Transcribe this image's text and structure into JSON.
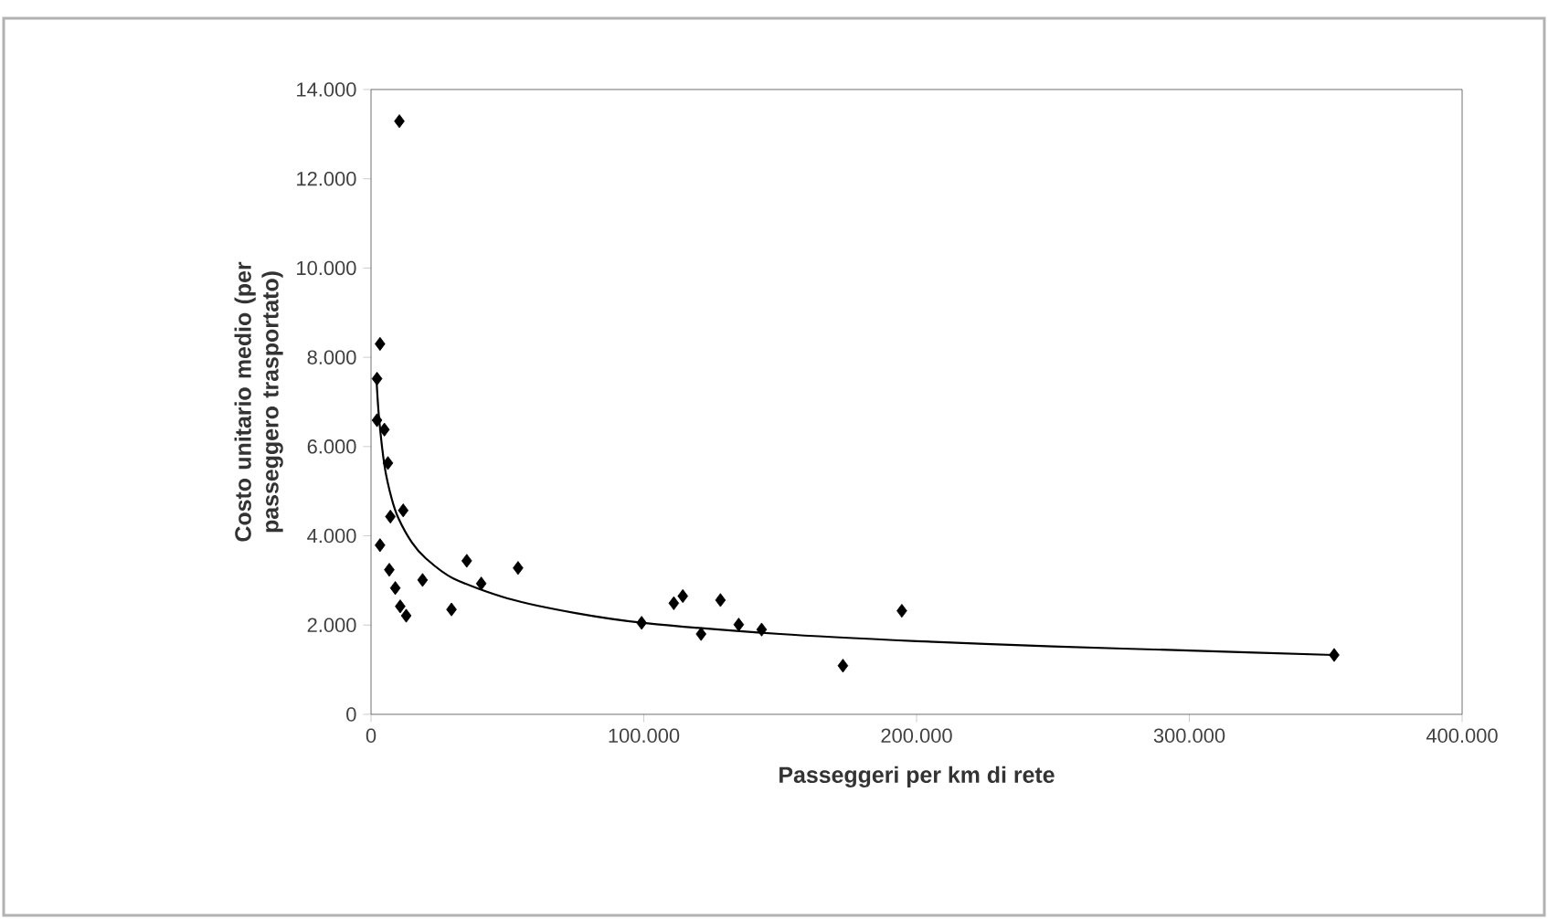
{
  "chart_data": {
    "type": "scatter",
    "xlabel": "Passeggeri per km di rete",
    "ylabel": "Costo unitario medio (per passeggero trasportato)",
    "xlim": [
      0,
      400000
    ],
    "ylim": [
      0,
      14000
    ],
    "xticks": [
      0,
      {
        "value": 100000,
        "label": "100.000"
      },
      {
        "value": 200000,
        "label": "200.000"
      },
      {
        "value": 300000,
        "label": "300.000"
      },
      {
        "value": 400000,
        "label": "400.000"
      }
    ],
    "yticks": [
      0,
      {
        "value": 2000,
        "label": "2.000"
      },
      {
        "value": 4000,
        "label": "4.000"
      },
      {
        "value": 6000,
        "label": "6.000"
      },
      {
        "value": 8000,
        "label": "8.000"
      },
      {
        "value": 10000,
        "label": "10.000"
      },
      {
        "value": 12000,
        "label": "12.000"
      },
      {
        "value": 14000,
        "label": "14.000"
      }
    ],
    "grid": false,
    "marker": "diamond",
    "series": [
      {
        "color": "#000000",
        "x": [
          10400,
          3300,
          2200,
          2200,
          4900,
          6200,
          7100,
          11800,
          3300,
          6700,
          8900,
          10700,
          12900,
          18900,
          29500,
          35100,
          40400,
          53900,
          99200,
          111000,
          114300,
          121000,
          128100,
          134800,
          143200,
          173000,
          194600,
          353100
        ],
        "values": [
          13290,
          8300,
          7520,
          6590,
          6380,
          5630,
          4430,
          4570,
          3790,
          3240,
          2830,
          2420,
          2210,
          3010,
          2350,
          3440,
          2930,
          3280,
          2050,
          2490,
          2650,
          1800,
          2560,
          2010,
          1900,
          1090,
          2320,
          1330
        ]
      },
      {
        "type": "line",
        "color": "#000000",
        "marker": "none",
        "line_style": "solid",
        "x": [
          2000,
          3000,
          5000,
          7500,
          10000,
          15000,
          20000,
          30000,
          50000,
          75000,
          100000,
          150000,
          200000,
          250000,
          300000,
          353000
        ],
        "values": [
          7500,
          6600,
          5550,
          4850,
          4400,
          3850,
          3500,
          3050,
          2600,
          2270,
          2050,
          1800,
          1640,
          1520,
          1430,
          1330
        ]
      }
    ]
  }
}
